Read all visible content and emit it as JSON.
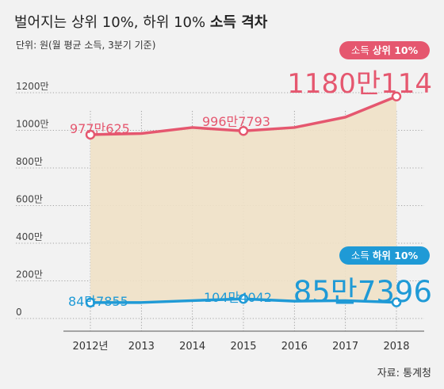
{
  "header": {
    "title_main": "벌어지는 상위 10%, 하위 10%",
    "title_bold": "소득 격차",
    "subtitle": "단위: 원(월 평균 소득, 3분기 기준)"
  },
  "source": "자료: 통계청",
  "colors": {
    "top_series": "#e5576f",
    "bottom_series": "#1f9ad6",
    "fill_between": "#efe1c6",
    "grid": "#8a8a8a",
    "background": "#f2f2f2"
  },
  "chart_data": {
    "type": "line",
    "categories": [
      "2012년",
      "2013",
      "2014",
      "2015",
      "2016",
      "2017",
      "2018"
    ],
    "ylim": [
      0,
      1200
    ],
    "yticks": [
      {
        "value": 0,
        "label": "0"
      },
      {
        "value": 200,
        "label": "200만"
      },
      {
        "value": 400,
        "label": "400만"
      },
      {
        "value": 600,
        "label": "600만"
      },
      {
        "value": 800,
        "label": "800만"
      },
      {
        "value": 1000,
        "label": "1000만"
      },
      {
        "value": 1200,
        "label": "1200만"
      }
    ],
    "series": [
      {
        "key": "top",
        "name": "소득 상위 10%",
        "legend_prefix": "소득",
        "legend_bold": "상위 10%",
        "values": [
          977.0625,
          983,
          1015,
          996.7793,
          1015,
          1070,
          1180.0114
        ],
        "labels": [
          {
            "index": 0,
            "text": "977만625"
          },
          {
            "index": 3,
            "text": "996만7793"
          },
          {
            "index": 6,
            "text": "1180만114"
          }
        ]
      },
      {
        "key": "bottom",
        "name": "소득 하위 10%",
        "legend_prefix": "소득",
        "legend_bold": "하위 10%",
        "values": [
          84.7855,
          85,
          95,
          104.4042,
          92,
          95,
          85.7396
        ],
        "labels": [
          {
            "index": 0,
            "text": "84만7855"
          },
          {
            "index": 3,
            "text": "104만4042"
          },
          {
            "index": 6,
            "text": "85만7396"
          }
        ]
      }
    ],
    "grid": true
  }
}
